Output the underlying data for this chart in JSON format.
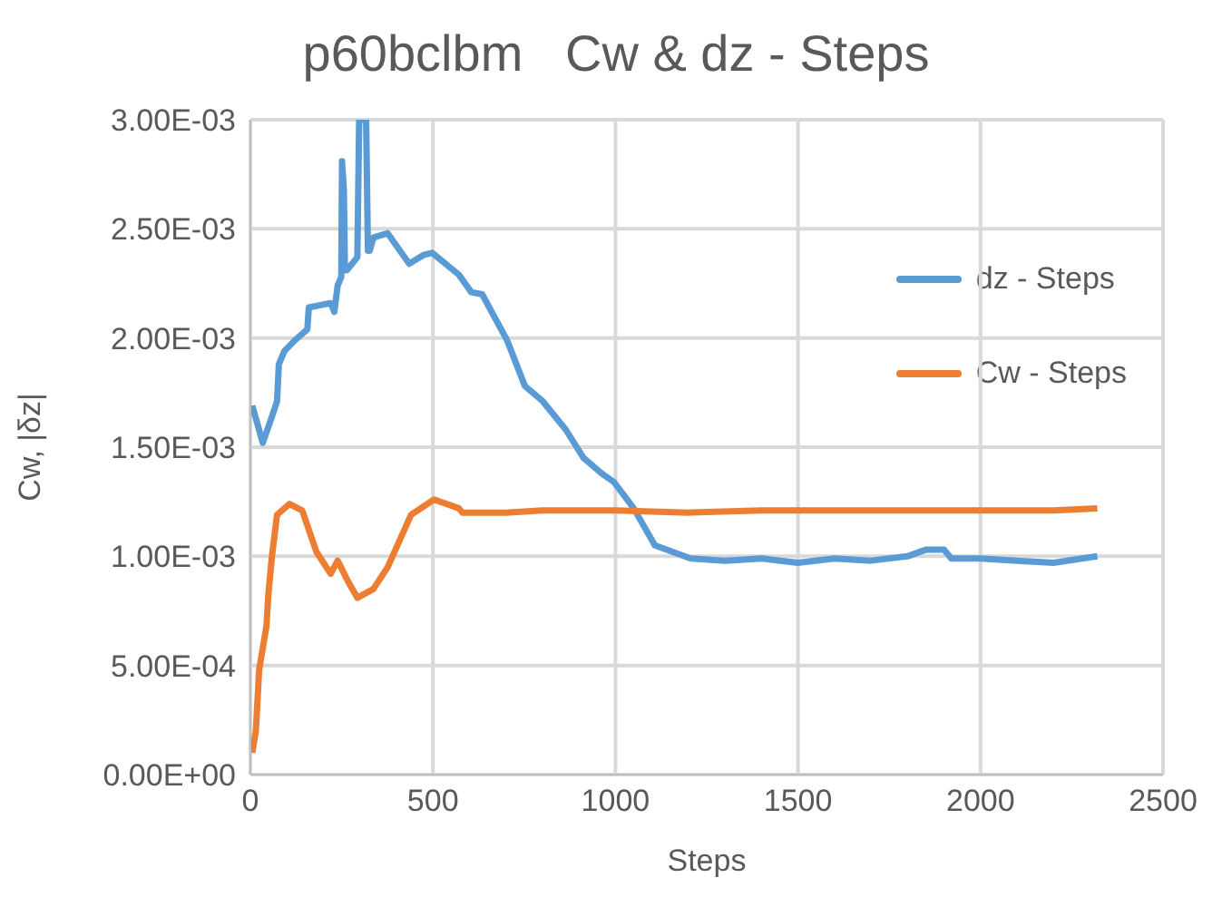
{
  "chart_data": {
    "type": "line",
    "title": "p60bclbm   Cw & dz - Steps",
    "xlabel": "Steps",
    "ylabel": "Cw, |δz|",
    "xlim": [
      0,
      2500
    ],
    "xticks": [
      0,
      500,
      1000,
      1500,
      2000,
      2500
    ],
    "ylim": [
      0,
      0.003
    ],
    "yticks": [
      {
        "value": 0,
        "label": "0.00E+00"
      },
      {
        "value": 0.0005,
        "label": "5.00E-04"
      },
      {
        "value": 0.001,
        "label": "1.00E-03"
      },
      {
        "value": 0.0015,
        "label": "1.50E-03"
      },
      {
        "value": 0.002,
        "label": "2.00E-03"
      },
      {
        "value": 0.0025,
        "label": "2.50E-03"
      },
      {
        "value": 0.003,
        "label": "3.00E-03"
      }
    ],
    "grid": true,
    "legend": "right",
    "marker": "none",
    "line_style": "solid",
    "series": [
      {
        "name": "dz - Steps",
        "color": "#5b9bd5",
        "x": [
          5,
          34,
          59,
          73,
          78,
          93,
          122,
          156,
          160,
          220,
          230,
          239,
          249,
          251,
          256,
          259,
          264,
          293,
          298,
          317,
          322,
          327,
          337,
          376,
          435,
          474,
          498,
          571,
          605,
          635,
          703,
          752,
          801,
          864,
          913,
          962,
          996,
          1050,
          1108,
          1206,
          1300,
          1400,
          1500,
          1600,
          1700,
          1800,
          1850,
          1900,
          1920,
          2000,
          2100,
          2200,
          2320
        ],
        "values": [
          0.00169,
          0.00152,
          0.00164,
          0.00171,
          0.00188,
          0.00194,
          0.00199,
          0.00204,
          0.00214,
          0.00216,
          0.00212,
          0.00224,
          0.00228,
          0.00281,
          0.00268,
          0.00231,
          0.00231,
          0.00237,
          0.003,
          0.003,
          0.0024,
          0.0024,
          0.00246,
          0.00248,
          0.00234,
          0.00238,
          0.00239,
          0.00229,
          0.00221,
          0.0022,
          0.00199,
          0.00178,
          0.00171,
          0.00158,
          0.00145,
          0.00138,
          0.00134,
          0.00122,
          0.00105,
          0.00099,
          0.00098,
          0.00099,
          0.00097,
          0.00099,
          0.00098,
          0.001,
          0.00103,
          0.00103,
          0.00099,
          0.00099,
          0.00098,
          0.00097,
          0.001
        ]
      },
      {
        "name": "Cw - Steps",
        "color": "#ed7d31",
        "x": [
          5,
          15,
          24,
          44,
          49,
          59,
          73,
          107,
          142,
          181,
          220,
          239,
          269,
          293,
          337,
          376,
          440,
          503,
          571,
          581,
          700,
          800,
          1000,
          1200,
          1400,
          1600,
          1800,
          2000,
          2200,
          2320
        ],
        "values": [
          0.0001,
          0.0002,
          0.00048,
          0.00068,
          0.00082,
          0.001,
          0.00119,
          0.00124,
          0.00121,
          0.00102,
          0.00092,
          0.00098,
          0.00088,
          0.00081,
          0.00085,
          0.00095,
          0.00119,
          0.00126,
          0.00122,
          0.0012,
          0.0012,
          0.00121,
          0.00121,
          0.0012,
          0.00121,
          0.00121,
          0.00121,
          0.00121,
          0.00121,
          0.00122
        ]
      }
    ]
  }
}
